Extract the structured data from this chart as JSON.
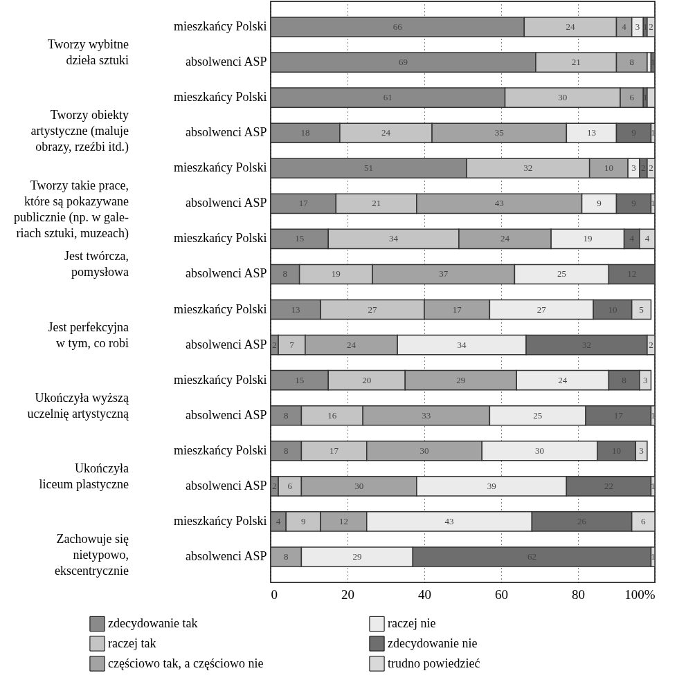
{
  "chart_data": {
    "type": "bar",
    "orientation": "horizontal",
    "stacked": true,
    "categories": [
      "mieszkańcy Polski",
      "absolwenci ASP",
      "mieszkańcy Polski",
      "absolwenci ASP",
      "mieszkańcy Polski",
      "absolwenci ASP",
      "mieszkańcy Polski",
      "absolwenci ASP",
      "mieszkańcy Polski",
      "absolwenci ASP",
      "mieszkańcy Polski",
      "absolwenci ASP",
      "mieszkańcy Polski",
      "absolwenci ASP",
      "mieszkańcy Polski",
      "absolwenci ASP"
    ],
    "series": [
      {
        "name": "zdecydowanie tak",
        "color": "#8a8a8a",
        "values": [
          66,
          69,
          61,
          18,
          51,
          17,
          15,
          7.5,
          13,
          2,
          15,
          8,
          8,
          2,
          4,
          null
        ],
        "value_labels": [
          "66",
          "69",
          "61",
          "18",
          "51",
          "17",
          "15",
          "8",
          "13",
          "2",
          "15",
          "8",
          "8",
          "2",
          "4",
          null
        ]
      },
      {
        "name": "raczej tak",
        "color": "#c4c4c4",
        "values": [
          24,
          21,
          30,
          24,
          32,
          21,
          34,
          19,
          27,
          7,
          20,
          16,
          17,
          6,
          9,
          null
        ],
        "value_labels": [
          "24",
          "21",
          "30",
          "24",
          "32",
          "21",
          "34",
          "19",
          "27",
          "7",
          "20",
          "16",
          "17",
          "6",
          "9",
          null
        ]
      },
      {
        "name": "częściowo tak, a częściowo nie",
        "color": "#a3a3a3",
        "values": [
          4,
          8,
          6,
          35,
          10,
          43,
          24,
          37,
          17,
          24,
          29,
          33,
          30,
          30,
          12,
          8
        ],
        "value_labels": [
          "4",
          "8",
          "6",
          "35",
          "10",
          "43",
          "24",
          "37",
          "17",
          "24",
          "29",
          "33",
          "30",
          "30",
          "12",
          "8"
        ]
      },
      {
        "name": "raczej nie",
        "color": "#ebebeb",
        "values": [
          3,
          1,
          null,
          13,
          3,
          9,
          19,
          24.5,
          27,
          33.5,
          24,
          25,
          30,
          39,
          43,
          29
        ],
        "value_labels": [
          "3",
          null,
          null,
          "13",
          "3",
          "9",
          "19",
          "25",
          "27",
          "34",
          "24",
          "25",
          "30",
          "39",
          "43",
          "29"
        ]
      },
      {
        "name": "zdecydowanie nie",
        "color": "#6e6e6e",
        "values": [
          1,
          1,
          1,
          9,
          2,
          9,
          4,
          12,
          10,
          31.5,
          8,
          17,
          10,
          22,
          26,
          62
        ],
        "value_labels": [
          "1",
          "1",
          "1",
          "9",
          "2",
          "9",
          "4",
          "12",
          "10",
          "32",
          "8",
          "17",
          "10",
          "22",
          "26",
          "62"
        ]
      },
      {
        "name": "trudno powiedzieć",
        "color": "#d9d9d9",
        "values": [
          2,
          null,
          2,
          1,
          2,
          1,
          4,
          null,
          5,
          2,
          3,
          1,
          3,
          1,
          6,
          1
        ],
        "value_labels": [
          "2",
          null,
          null,
          "1",
          "2",
          "1",
          "4",
          null,
          "5",
          "2",
          "3",
          "1",
          "3",
          "1",
          "6",
          "1"
        ]
      }
    ],
    "xlim": [
      0,
      100
    ],
    "xticks": [
      0,
      20,
      40,
      60,
      80,
      {
        "value": 100,
        "label": "100%"
      }
    ],
    "grid": "x",
    "legend": "bottom",
    "annotations": [
      "Tworzy wybitne\ndzieła sztuki",
      "Tworzy obiekty\nartystyczne (maluje\nobrazy, rzeźbi itd.)",
      "Tworzy takie prace,\nktóre są pokazywane\npublicznie (np. w gale-\nriach sztuki, muzeach)",
      "Jest twórcza,\npomysłowa",
      "Jest perfekcyjna\nw tym, co robi",
      "Ukończyła wyższą\nuczelnię artystyczną",
      "Ukończyła\nliceum plastyczne",
      "Zachowuje się\nnietypowo,\nekscentrycznie"
    ]
  }
}
